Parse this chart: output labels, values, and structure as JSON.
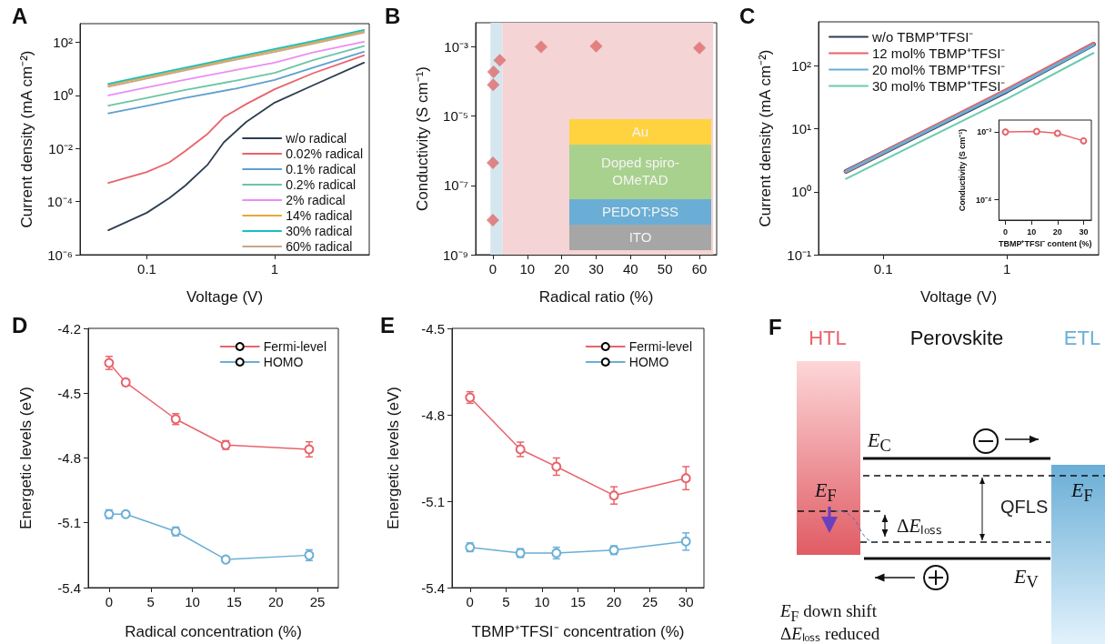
{
  "chart_data": [
    {
      "type": "line",
      "title": "A",
      "xlabel": "Voltage (V)",
      "ylabel": "Current density (mA cm⁻²)",
      "log": "xy",
      "xlim": [
        0.03,
        5.5
      ],
      "ylim": [
        1e-06,
        500
      ],
      "xticks": [
        0.1,
        1
      ],
      "yticks": [
        {
          "value": 1e-06,
          "label": "10⁻⁶"
        },
        {
          "value": 0.0001,
          "label": "10⁻⁴"
        },
        {
          "value": 0.01,
          "label": "10⁻²"
        },
        {
          "value": 1,
          "label": "10⁰"
        },
        {
          "value": 100,
          "label": "10²"
        }
      ],
      "legend": "bottom right",
      "series": [
        {
          "name": "w/o radical",
          "color": "#2d3e50",
          "x": [
            0.05,
            0.1,
            0.15,
            0.2,
            0.3,
            0.4,
            0.6,
            1,
            2,
            5
          ],
          "values": [
            8.3e-06,
            3.8e-05,
            0.000135,
            0.0004,
            0.0025,
            0.017,
            0.1,
            0.53,
            2.4,
            17
          ]
        },
        {
          "name": "0.02% radical",
          "color": "#e8636a",
          "x": [
            0.05,
            0.1,
            0.15,
            0.2,
            0.3,
            0.4,
            0.6,
            1,
            2,
            5
          ],
          "values": [
            0.0005,
            0.0013,
            0.003,
            0.008,
            0.036,
            0.15,
            0.47,
            1.7,
            6.8,
            32
          ]
        },
        {
          "name": "0.1% radical",
          "color": "#5fa0d0",
          "x": [
            0.05,
            0.1,
            0.2,
            0.5,
            1,
            2,
            5
          ],
          "values": [
            0.21,
            0.4,
            0.8,
            1.8,
            3.8,
            11,
            44
          ]
        },
        {
          "name": "0.2% radical",
          "color": "#6cc5a5",
          "x": [
            0.05,
            0.1,
            0.2,
            0.5,
            1,
            2,
            5
          ],
          "values": [
            0.41,
            0.8,
            1.6,
            3.6,
            7,
            21,
            72
          ]
        },
        {
          "name": "2% radical",
          "color": "#ea8ef5",
          "x": [
            0.05,
            0.1,
            0.2,
            0.5,
            1,
            2,
            5
          ],
          "values": [
            1,
            2,
            3.9,
            9,
            17,
            41,
            105
          ]
        },
        {
          "name": "14% radical",
          "color": "#e8a838",
          "x": [
            0.05,
            0.1,
            0.2,
            0.5,
            1,
            2,
            5
          ],
          "values": [
            2.4,
            4.9,
            9.8,
            25,
            49,
            98,
            260
          ]
        },
        {
          "name": "30% radical",
          "color": "#19c1c4",
          "x": [
            0.05,
            0.1,
            0.2,
            0.5,
            1,
            2,
            5
          ],
          "values": [
            2.7,
            5.5,
            11,
            28,
            55,
            110,
            290
          ]
        },
        {
          "name": "60% radical",
          "color": "#c9a68a",
          "x": [
            0.05,
            0.1,
            0.2,
            0.5,
            1,
            2,
            5
          ],
          "values": [
            2.1,
            4.3,
            8.7,
            22,
            43,
            87,
            230
          ]
        }
      ]
    },
    {
      "type": "scatter",
      "title": "B",
      "xlabel": "Radical ratio (%)",
      "ylabel": "Conductivity (S cm⁻¹)",
      "log": "y",
      "xlim": [
        -5,
        65
      ],
      "ylim": [
        1e-09,
        0.005
      ],
      "xticks": [
        0,
        10,
        20,
        30,
        40,
        50,
        60
      ],
      "yticks": [
        {
          "value": 1e-09,
          "label": "10⁻⁹"
        },
        {
          "value": 1e-07,
          "label": "10⁻⁷"
        },
        {
          "value": 1e-05,
          "label": "10⁻⁵"
        },
        {
          "value": 0.001,
          "label": "10⁻³"
        }
      ],
      "marker": "diamond",
      "color": "#de6b6b",
      "x": [
        0,
        0.02,
        0.1,
        0.2,
        2,
        14,
        30,
        60
      ],
      "values": [
        1e-08,
        4.5e-07,
        8e-05,
        0.00019,
        0.00041,
        0.001,
        0.00106,
        0.00094
      ],
      "bands": [
        {
          "axis": "x",
          "from": -0.7,
          "to": 2.8,
          "color": "#d6e6ee"
        },
        {
          "axis": "x",
          "from": 2.8,
          "to": 64,
          "color": "#f4d4d4"
        }
      ],
      "annotations": [
        "Au",
        "Doped spiro-OMeTAD",
        "PEDOT:PSS",
        "ITO"
      ]
    },
    {
      "type": "line",
      "title": "C",
      "xlabel": "Voltage (V)",
      "ylabel": "Current density (mA cm⁻²)",
      "log": "xy",
      "xlim": [
        0.03,
        5.5
      ],
      "ylim": [
        0.1,
        500
      ],
      "xticks": [
        0.1,
        1
      ],
      "yticks": [
        {
          "value": 0.1,
          "label": "10⁻¹"
        },
        {
          "value": 1,
          "label": "10⁰"
        },
        {
          "value": 10,
          "label": "10¹"
        },
        {
          "value": 100,
          "label": "10²"
        }
      ],
      "legend": "top left",
      "x": [
        0.05,
        1,
        5
      ],
      "series": [
        {
          "name": "w/o TBMP⁺TFSI⁻",
          "color": "#2d3e50",
          "values": [
            2.1,
            40,
            220
          ]
        },
        {
          "name": "12 mol% TBMP⁺TFSI⁻",
          "color": "#e8636a",
          "values": [
            2.1,
            42,
            225
          ]
        },
        {
          "name": "20 mol% TBMP⁺TFSI⁻",
          "color": "#6aaed6",
          "values": [
            2.1,
            40,
            215
          ]
        },
        {
          "name": "30 mol% TBMP⁺TFSI⁻",
          "color": "#6ccab0",
          "values": [
            1.6,
            30,
            160
          ]
        }
      ]
    },
    {
      "type": "line",
      "xlabel": "TBMP⁺TFSI⁻ content (%)",
      "ylabel": "Conductivity (S cm⁻¹)",
      "log": "y",
      "xlim": [
        -2.5,
        33
      ],
      "ylim": [
        5e-05,
        0.0015
      ],
      "xticks": [
        0,
        10,
        20,
        30
      ],
      "yticks": [
        {
          "value": 0.0001,
          "label": "10⁻⁴"
        },
        {
          "value": 0.001,
          "label": "10⁻³"
        }
      ],
      "marker": "circle",
      "x": [
        0,
        12,
        20,
        30
      ],
      "series": [
        {
          "color": "#e8636a",
          "values": [
            0.001,
            0.00102,
            0.00096,
            0.00074
          ]
        }
      ]
    },
    {
      "type": "line",
      "title": "D",
      "xlabel": "Radical concentration (%)",
      "ylabel": "Energetic levels (eV)",
      "xlim": [
        -2.5,
        27.5
      ],
      "ylim": [
        -5.4,
        -4.2
      ],
      "xticks": [
        0,
        5,
        10,
        15,
        20,
        25
      ],
      "yticks": [
        -5.4,
        -5.1,
        -4.8,
        -4.5,
        -4.2
      ],
      "legend": "top right",
      "marker": "circle",
      "x": [
        0,
        2,
        8,
        14,
        24
      ],
      "series": [
        {
          "name": "Fermi-level",
          "color": "#e8636a",
          "values": [
            -4.36,
            -4.45,
            -4.62,
            -4.74,
            -4.76
          ],
          "errors": [
            0.03,
            0.015,
            0.025,
            0.02,
            0.035
          ]
        },
        {
          "name": "HOMO",
          "color": "#6aaed6",
          "values": [
            -5.06,
            -5.06,
            -5.14,
            -5.27,
            -5.25
          ],
          "errors": [
            0.02,
            0.01,
            0.02,
            0.01,
            0.025
          ]
        }
      ]
    },
    {
      "type": "line",
      "title": "E",
      "xlabel": "TBMP⁺TFSI⁻ concentration (%)",
      "ylabel": "Energetic levels (eV)",
      "xlim": [
        -2.5,
        32.5
      ],
      "ylim": [
        -5.4,
        -4.5
      ],
      "xticks": [
        0,
        5,
        10,
        15,
        20,
        25,
        30
      ],
      "yticks": [
        -5.4,
        -5.1,
        -4.8,
        -4.5
      ],
      "legend": "top right",
      "marker": "circle",
      "x": [
        0,
        7,
        12,
        20,
        30
      ],
      "series": [
        {
          "name": "Fermi-level",
          "color": "#e8636a",
          "values": [
            -4.74,
            -4.92,
            -4.98,
            -5.08,
            -5.02
          ],
          "errors": [
            0.02,
            0.025,
            0.03,
            0.03,
            0.04
          ]
        },
        {
          "name": "HOMO",
          "color": "#6aaed6",
          "values": [
            -5.26,
            -5.28,
            -5.28,
            -5.27,
            -5.24
          ],
          "errors": [
            0.015,
            0.015,
            0.02,
            0.015,
            0.03
          ]
        }
      ]
    },
    {
      "type": "other",
      "title": "F",
      "annotations": [
        "HTL",
        "Perovskite",
        "ETL",
        "E$_{C}$",
        "QFLS",
        "E$_{F}$",
        "ΔEₗₒₛₛ",
        "E$_{F}$",
        "E$_{V}$",
        "E$_{F}$ down shift",
        "ΔEₗₒₛₛ reduced"
      ]
    }
  ]
}
